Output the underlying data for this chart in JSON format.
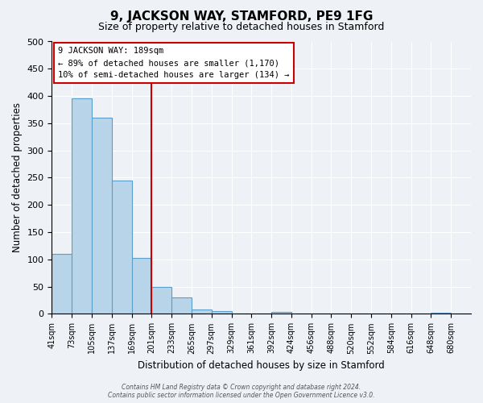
{
  "title": "9, JACKSON WAY, STAMFORD, PE9 1FG",
  "subtitle": "Size of property relative to detached houses in Stamford",
  "xlabel": "Distribution of detached houses by size in Stamford",
  "ylabel": "Number of detached properties",
  "bin_labels": [
    "41sqm",
    "73sqm",
    "105sqm",
    "137sqm",
    "169sqm",
    "201sqm",
    "233sqm",
    "265sqm",
    "297sqm",
    "329sqm",
    "361sqm",
    "392sqm",
    "424sqm",
    "456sqm",
    "488sqm",
    "520sqm",
    "552sqm",
    "584sqm",
    "616sqm",
    "648sqm",
    "680sqm"
  ],
  "bar_heights": [
    110,
    395,
    360,
    245,
    103,
    50,
    30,
    8,
    5,
    0,
    0,
    3,
    0,
    0,
    0,
    0,
    0,
    0,
    0,
    2,
    0
  ],
  "bar_color": "#b8d4e8",
  "bar_edge_color": "#5a9ec9",
  "vline_color": "#cc0000",
  "ylim": [
    0,
    500
  ],
  "annotation_title": "9 JACKSON WAY: 189sqm",
  "annotation_line1": "← 89% of detached houses are smaller (1,170)",
  "annotation_line2": "10% of semi-detached houses are larger (134) →",
  "annotation_box_color": "#cc0000",
  "footer_line1": "Contains HM Land Registry data © Crown copyright and database right 2024.",
  "footer_line2": "Contains public sector information licensed under the Open Government Licence v3.0.",
  "background_color": "#eef2f7",
  "plot_bg_color": "#eef2f7"
}
